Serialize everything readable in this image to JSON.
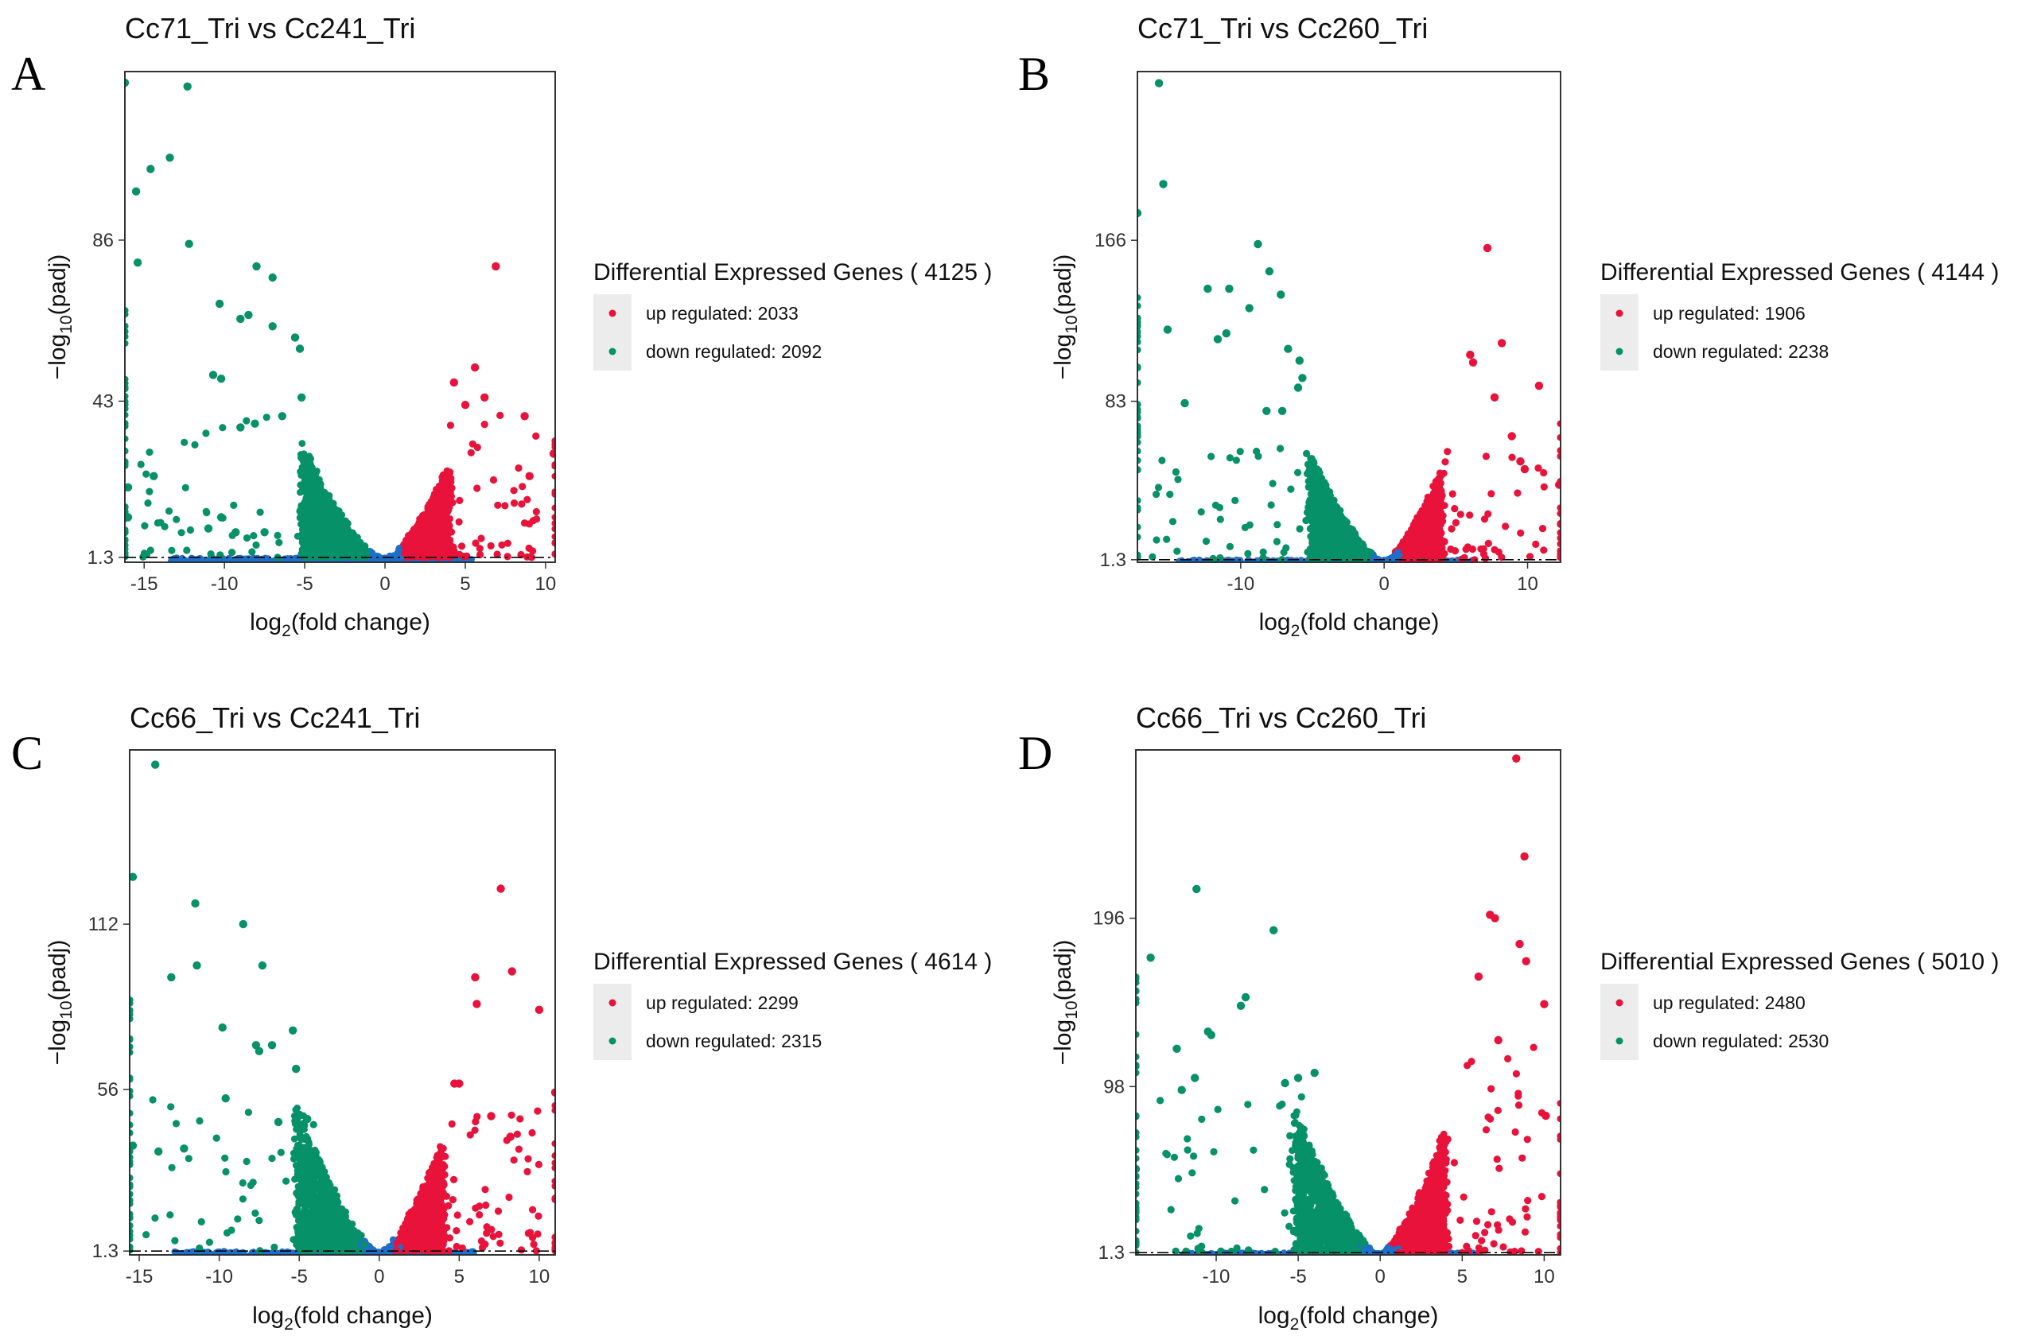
{
  "figure": {
    "colors": {
      "up": "#E8123A",
      "down": "#069168",
      "ns": "#1E6FC8",
      "threshold_line": "#000000"
    },
    "panels_note": "four volcano plots"
  },
  "chart_data": [
    {
      "type": "scatter",
      "panel_letter": "A",
      "title": "Cc71_Tri vs Cc241_Tri",
      "xlabel": "log2(fold change)",
      "ylabel": "-log10(padj)",
      "x_ticks": [
        -15,
        -10,
        -5,
        0,
        5,
        10
      ],
      "x_tick_labels": [
        "-15",
        "-10",
        "-5",
        "0",
        "5",
        "10"
      ],
      "y_ticks": [
        1.3,
        43,
        86
      ],
      "y_tick_labels": [
        "1.3",
        "43",
        "86"
      ],
      "xlim": [
        -16.2,
        10.6
      ],
      "ylim": [
        0,
        131
      ],
      "threshold_y": 1.3,
      "legend": {
        "title": "Differential Expressed Genes ( 4125 )",
        "total": 4125,
        "up_label": "up regulated: 2033",
        "up": 2033,
        "down_label": "down regulated: 2092",
        "down": 2092
      },
      "highlight_up": [
        [
          6.9,
          79
        ],
        [
          5.6,
          52
        ],
        [
          4.3,
          48
        ],
        [
          8.7,
          39
        ],
        [
          9.0,
          23
        ],
        [
          10.5,
          29
        ],
        [
          6.2,
          44
        ],
        [
          5.0,
          42
        ]
      ],
      "highlight_down": [
        [
          -16.2,
          128
        ],
        [
          -12.3,
          127
        ],
        [
          -13.4,
          108
        ],
        [
          -14.6,
          105
        ],
        [
          -15.5,
          99
        ],
        [
          -12.2,
          85
        ],
        [
          -15.4,
          80
        ],
        [
          -8.0,
          79
        ],
        [
          -7.0,
          76
        ],
        [
          -10.3,
          69
        ],
        [
          -8.5,
          66
        ],
        [
          -9.0,
          65
        ],
        [
          -7.0,
          63
        ],
        [
          -5.6,
          60
        ],
        [
          -5.3,
          57
        ],
        [
          -10.7,
          50
        ],
        [
          -10.2,
          49
        ],
        [
          -5.2,
          44
        ],
        [
          -8.1,
          37
        ],
        [
          -9.0,
          36
        ],
        [
          -6.4,
          39
        ],
        [
          -14.4,
          23
        ],
        [
          -16.0,
          20
        ],
        [
          -16.0,
          12
        ],
        [
          -10.2,
          12
        ],
        [
          -9.3,
          8
        ],
        [
          -11.0,
          9
        ],
        [
          -7.5,
          8
        ]
      ]
    },
    {
      "type": "scatter",
      "panel_letter": "B",
      "title": "Cc71_Tri vs Cc260_Tri",
      "xlabel": "log2(fold change)",
      "ylabel": "-log10(padj)",
      "x_ticks": [
        -10,
        0,
        10
      ],
      "x_tick_labels": [
        "-10",
        "0",
        "10"
      ],
      "y_ticks": [
        1.3,
        83,
        166
      ],
      "y_tick_labels": [
        "1.3",
        "83",
        "166"
      ],
      "xlim": [
        -17.2,
        12.3
      ],
      "ylim": [
        0,
        253
      ],
      "threshold_y": 1.3,
      "legend": {
        "title": "Differential Expressed Genes ( 4144 )",
        "total": 4144,
        "up_label": "up regulated: 1906",
        "up": 1906,
        "down_label": "down regulated: 2238",
        "down": 2238
      },
      "highlight_up": [
        [
          7.2,
          162
        ],
        [
          10.8,
          91
        ],
        [
          6.0,
          107
        ],
        [
          8.2,
          113
        ],
        [
          6.2,
          103
        ],
        [
          7.7,
          85
        ],
        [
          8.9,
          65
        ],
        [
          9.5,
          52
        ],
        [
          9.8,
          48
        ],
        [
          12.2,
          40
        ]
      ],
      "highlight_down": [
        [
          -15.7,
          247
        ],
        [
          -15.4,
          195
        ],
        [
          -17.2,
          180
        ],
        [
          -8.8,
          164
        ],
        [
          -8.0,
          150
        ],
        [
          -7.2,
          138
        ],
        [
          -10.8,
          141
        ],
        [
          -12.3,
          141
        ],
        [
          -9.4,
          131
        ],
        [
          -15.1,
          120
        ],
        [
          -11.0,
          118
        ],
        [
          -11.6,
          115
        ],
        [
          -6.7,
          110
        ],
        [
          -5.9,
          104
        ],
        [
          -13.9,
          82
        ],
        [
          -5.7,
          95
        ],
        [
          -6.0,
          90
        ],
        [
          -8.2,
          78
        ],
        [
          -7.1,
          78
        ]
      ]
    },
    {
      "type": "scatter",
      "panel_letter": "C",
      "title": "Cc66_Tri vs Cc241_Tri",
      "xlabel": "log2(fold change)",
      "ylabel": "-log10(padj)",
      "x_ticks": [
        -15,
        -10,
        -5,
        0,
        5,
        10
      ],
      "x_tick_labels": [
        "-15",
        "-10",
        "-5",
        "0",
        "5",
        "10"
      ],
      "y_ticks": [
        1.3,
        56,
        112
      ],
      "y_tick_labels": [
        "1.3",
        "56",
        "112"
      ],
      "xlim": [
        -15.6,
        11.0
      ],
      "ylim": [
        0,
        171
      ],
      "threshold_y": 1.3,
      "legend": {
        "title": "Differential Expressed Genes ( 4614 )",
        "total": 4614,
        "up_label": "up regulated: 2299",
        "up": 2299,
        "down_label": "down regulated: 2315",
        "down": 2315
      },
      "highlight_up": [
        [
          7.6,
          124
        ],
        [
          8.3,
          96
        ],
        [
          6.0,
          94
        ],
        [
          6.1,
          85
        ],
        [
          10.0,
          83
        ],
        [
          11.0,
          55
        ],
        [
          5.0,
          58
        ],
        [
          4.7,
          58
        ],
        [
          8.2,
          40
        ],
        [
          7.0,
          47
        ]
      ],
      "highlight_down": [
        [
          -14.0,
          166
        ],
        [
          -15.4,
          128
        ],
        [
          -11.5,
          119
        ],
        [
          -8.5,
          112
        ],
        [
          -7.3,
          98
        ],
        [
          -11.4,
          98
        ],
        [
          -13.0,
          94
        ],
        [
          -9.8,
          77
        ],
        [
          -7.7,
          71
        ],
        [
          -6.7,
          71
        ],
        [
          -5.4,
          76
        ],
        [
          -7.5,
          69
        ],
        [
          -5.2,
          63
        ],
        [
          -9.6,
          53
        ],
        [
          -4.5,
          46
        ],
        [
          -6.3,
          45
        ],
        [
          -15.4,
          37
        ],
        [
          -12.2,
          36
        ],
        [
          -13.8,
          35
        ]
      ]
    },
    {
      "type": "scatter",
      "panel_letter": "D",
      "title": "Cc66_Tri vs Cc260_Tri",
      "xlabel": "log2(fold change)",
      "ylabel": "-log10(padj)",
      "x_ticks": [
        -10,
        -5,
        0,
        5,
        10
      ],
      "x_tick_labels": [
        "-10",
        "-5",
        "0",
        "5",
        "10"
      ],
      "y_ticks": [
        1.3,
        98,
        196
      ],
      "y_tick_labels": [
        "1.3",
        "98",
        "196"
      ],
      "xlim": [
        -14.9,
        11.0
      ],
      "ylim": [
        0,
        294
      ],
      "threshold_y": 1.3,
      "legend": {
        "title": "Differential Expressed Genes ( 5010 )",
        "total": 5010,
        "up_label": "up regulated: 2480",
        "up": 2480,
        "down_label": "down regulated: 2530",
        "down": 2530
      },
      "highlight_up": [
        [
          8.3,
          289
        ],
        [
          8.8,
          232
        ],
        [
          6.7,
          198
        ],
        [
          7.0,
          196
        ],
        [
          8.5,
          181
        ],
        [
          8.9,
          171
        ],
        [
          10.0,
          146
        ],
        [
          6.0,
          162
        ],
        [
          10.1,
          81
        ],
        [
          7.2,
          125
        ]
      ],
      "highlight_down": [
        [
          -11.2,
          213
        ],
        [
          -6.5,
          189
        ],
        [
          -14.0,
          173
        ],
        [
          -8.2,
          150
        ],
        [
          -8.5,
          145
        ],
        [
          -10.5,
          130
        ],
        [
          -10.3,
          128
        ],
        [
          -12.4,
          120
        ],
        [
          -11.3,
          103
        ],
        [
          -12.1,
          96
        ],
        [
          -5.0,
          103
        ],
        [
          -5.8,
          100
        ],
        [
          -4.0,
          106
        ],
        [
          -14.9,
          50
        ]
      ]
    }
  ]
}
